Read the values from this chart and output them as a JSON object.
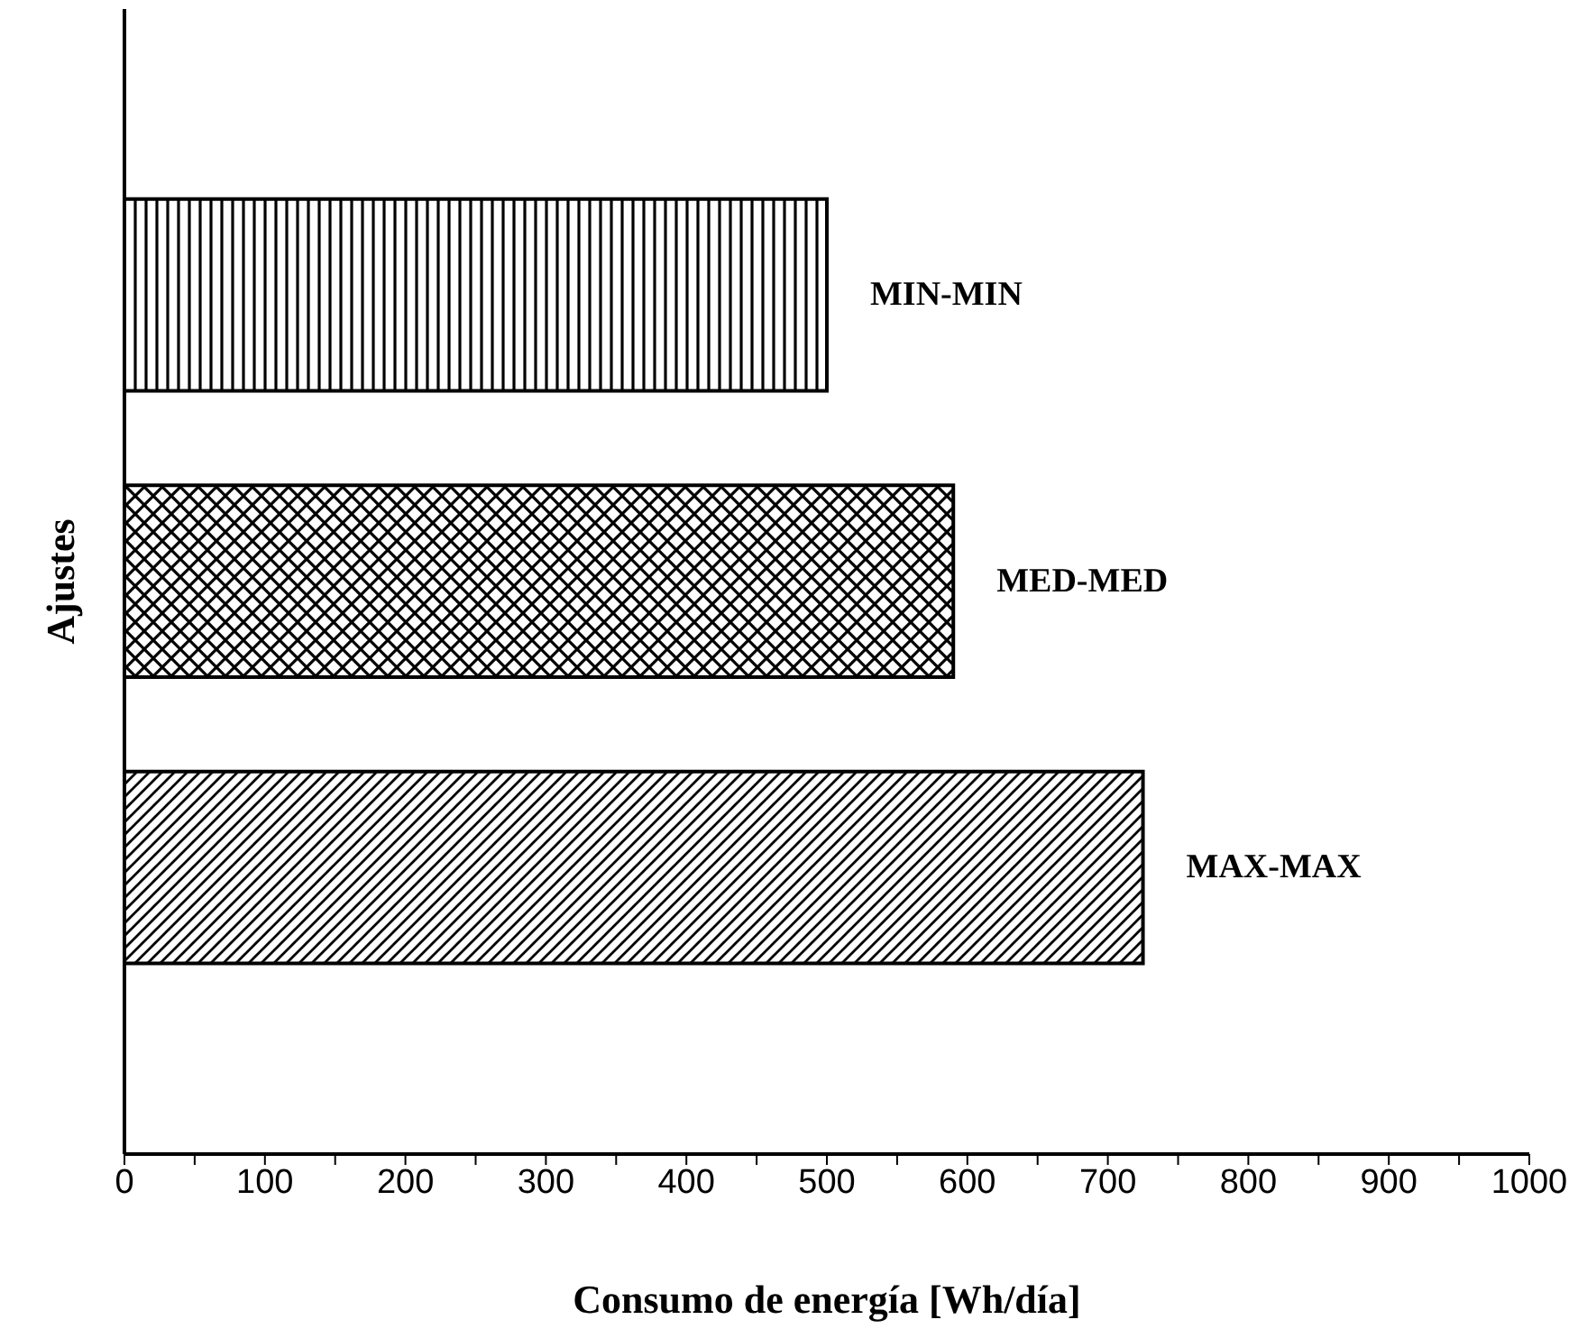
{
  "chart_data": {
    "type": "bar",
    "orientation": "horizontal",
    "xlabel": "Consumo de energía  [Wh/día]",
    "ylabel": "Ajustes",
    "categories": [
      "MIN-MIN",
      "MED-MED",
      "MAX-MAX"
    ],
    "values": [
      500,
      590,
      725
    ],
    "color": "#000000",
    "xlim": [
      0,
      1000
    ],
    "xticks": [
      0,
      {
        "value": 50,
        "label": null
      },
      100,
      {
        "value": 150,
        "label": null
      },
      200,
      {
        "value": 250,
        "label": null
      },
      300,
      {
        "value": 350,
        "label": null
      },
      400,
      {
        "value": 450,
        "label": null
      },
      500,
      {
        "value": 550,
        "label": null
      },
      600,
      {
        "value": 650,
        "label": null
      },
      700,
      {
        "value": 750,
        "label": null
      },
      800,
      {
        "value": 850,
        "label": null
      },
      900,
      {
        "value": 950,
        "label": null
      },
      1000
    ],
    "tick_labels": "x",
    "grid": false,
    "legend": false
  }
}
